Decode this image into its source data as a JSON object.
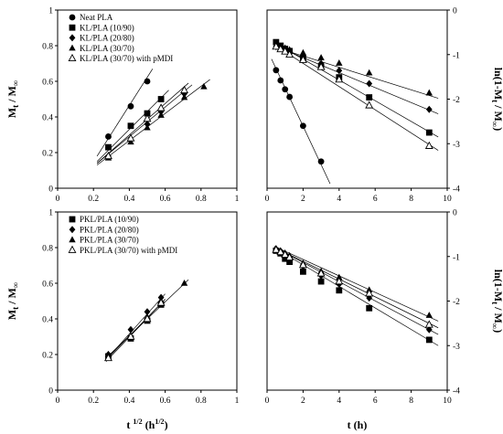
{
  "chart_data": [
    {
      "type": "scatter",
      "id": "tl",
      "xlim": [
        0,
        1
      ],
      "ylim": [
        0,
        1
      ],
      "xticks": [
        0,
        0.2,
        0.4,
        0.6,
        0.8,
        1
      ],
      "yticks": [
        0,
        0.2,
        0.4,
        0.6,
        0.8,
        1
      ],
      "xtick_labels": [
        "0",
        "0.2",
        "0.4",
        "0.6",
        "0.8",
        "1"
      ],
      "ytick_labels": [
        "0",
        "0.2",
        "0.4",
        "0.6",
        "0.8",
        "1"
      ],
      "ylabel": "Mt / M∞",
      "xlabel": "",
      "legend": "top-left",
      "series": [
        {
          "name": "Neat PLA",
          "marker": "circle",
          "x": [
            0.283,
            0.408,
            0.5
          ],
          "y": [
            0.29,
            0.46,
            0.6
          ],
          "fit": [
            [
              0.22,
              0.18
            ],
            [
              0.53,
              0.67
            ]
          ]
        },
        {
          "name": "KL/PLA (10/90)",
          "marker": "square",
          "x": [
            0.283,
            0.408,
            0.5,
            0.577
          ],
          "y": [
            0.23,
            0.35,
            0.42,
            0.5
          ],
          "fit": [
            [
              0.22,
              0.15
            ],
            [
              0.62,
              0.55
            ]
          ]
        },
        {
          "name": "KL/PLA (20/80)",
          "marker": "diamond",
          "x": [
            0.283,
            0.408,
            0.5,
            0.577,
            0.707
          ],
          "y": [
            0.18,
            0.27,
            0.36,
            0.43,
            0.53
          ],
          "fit": [
            [
              0.22,
              0.14
            ],
            [
              0.75,
              0.58
            ]
          ]
        },
        {
          "name": "KL/PLA (30/70)",
          "marker": "triangle",
          "x": [
            0.283,
            0.408,
            0.5,
            0.577,
            0.707,
            0.816
          ],
          "y": [
            0.17,
            0.26,
            0.34,
            0.41,
            0.51,
            0.57
          ],
          "fit": [
            [
              0.22,
              0.13
            ],
            [
              0.85,
              0.61
            ]
          ]
        },
        {
          "name": "KL/PLA (30/70) with pMDI",
          "marker": "triangle-open",
          "x": [
            0.283,
            0.408,
            0.5,
            0.577,
            0.707
          ],
          "y": [
            0.18,
            0.28,
            0.39,
            0.45,
            0.55
          ],
          "fit": [
            [
              0.22,
              0.14
            ],
            [
              0.73,
              0.59
            ]
          ]
        }
      ]
    },
    {
      "type": "scatter",
      "id": "tr",
      "xlim": [
        0,
        10
      ],
      "ylim": [
        -4,
        0
      ],
      "xticks": [
        0,
        2,
        4,
        6,
        8,
        10
      ],
      "yticks": [
        0,
        -1,
        -2,
        -3,
        -4
      ],
      "xtick_labels": [
        "0",
        "2",
        "4",
        "6",
        "8",
        "10"
      ],
      "ytick_labels": [
        "0",
        "-1",
        "-2",
        "-3",
        "-4"
      ],
      "ylabel": "ln(1-Mt / M∞)",
      "xlabel": "",
      "series": [
        {
          "name": "Neat PLA",
          "marker": "circle",
          "x": [
            0.5,
            0.75,
            1,
            1.25,
            2,
            3
          ],
          "y": [
            -1.35,
            -1.58,
            -1.78,
            -1.95,
            -2.6,
            -3.4
          ],
          "fit": [
            [
              0.25,
              -1.1
            ],
            [
              3.5,
              -3.9
            ]
          ]
        },
        {
          "name": "KL/PLA (10/90)",
          "marker": "square",
          "x": [
            0.5,
            0.75,
            1,
            1.25,
            2,
            3,
            4,
            5.67,
            9
          ],
          "y": [
            -0.72,
            -0.8,
            -0.87,
            -0.92,
            -1.08,
            -1.27,
            -1.51,
            -1.96,
            -2.75
          ],
          "fit": [
            [
              0.4,
              -0.73
            ],
            [
              9.5,
              -2.85
            ]
          ]
        },
        {
          "name": "KL/PLA (20/80)",
          "marker": "diamond",
          "x": [
            0.5,
            0.75,
            1,
            1.25,
            2,
            3,
            4,
            5.67,
            9
          ],
          "y": [
            -0.82,
            -0.86,
            -0.9,
            -0.95,
            -1.06,
            -1.2,
            -1.36,
            -1.65,
            -2.23
          ],
          "fit": [
            [
              0.4,
              -0.8
            ],
            [
              9.5,
              -2.33
            ]
          ]
        },
        {
          "name": "KL/PLA (30/70)",
          "marker": "triangle",
          "x": [
            0.5,
            0.75,
            1,
            1.25,
            2,
            3,
            4,
            5.67,
            9
          ],
          "y": [
            -0.82,
            -0.85,
            -0.85,
            -0.89,
            -0.96,
            -1.07,
            -1.19,
            -1.41,
            -1.86
          ],
          "fit": [
            [
              0.4,
              -0.83
            ],
            [
              9.5,
              -1.98
            ]
          ]
        },
        {
          "name": "KL/PLA (30/70) with pMDI",
          "marker": "triangle-open",
          "x": [
            0.5,
            0.75,
            1,
            1.25,
            2,
            3,
            4,
            5.67,
            9
          ],
          "y": [
            -0.82,
            -0.88,
            -0.93,
            -1.0,
            -1.12,
            -1.28,
            -1.56,
            -2.14,
            -3.05
          ],
          "fit": [
            [
              0.4,
              -0.78
            ],
            [
              9.5,
              -3.15
            ]
          ]
        }
      ]
    },
    {
      "type": "scatter",
      "id": "bl",
      "xlim": [
        0,
        1
      ],
      "ylim": [
        0,
        1
      ],
      "xticks": [
        0,
        0.2,
        0.4,
        0.6,
        0.8,
        1
      ],
      "yticks": [
        0,
        0.2,
        0.4,
        0.6,
        0.8,
        1
      ],
      "xtick_labels": [
        "0",
        "0.2",
        "0.4",
        "0.6",
        "0.8",
        "1"
      ],
      "ytick_labels": [
        "0",
        "0.2",
        "0.4",
        "0.6",
        "0.8",
        "1"
      ],
      "ylabel": "Mt / M∞",
      "xlabel": "t 1/2 (h1/2)",
      "legend": "top-left",
      "series": [
        {
          "name": "PKL/PLA (10/90)",
          "marker": "square",
          "x": [
            0.283,
            0.408,
            0.5,
            0.577
          ],
          "y": [
            0.19,
            0.29,
            0.39,
            0.48
          ],
          "fit": [
            [
              0.27,
              0.17
            ],
            [
              0.6,
              0.51
            ]
          ]
        },
        {
          "name": "PKL/PLA (20/80)",
          "marker": "diamond",
          "x": [
            0.283,
            0.408,
            0.5,
            0.577
          ],
          "y": [
            0.2,
            0.34,
            0.44,
            0.52
          ],
          "fit": [
            [
              0.27,
              0.17
            ],
            [
              0.6,
              0.54
            ]
          ]
        },
        {
          "name": "PKL/PLA (30/70)",
          "marker": "triangle",
          "x": [
            0.283,
            0.408,
            0.5,
            0.577,
            0.707
          ],
          "y": [
            0.2,
            0.3,
            0.41,
            0.5,
            0.6
          ],
          "fit": [
            [
              0.27,
              0.18
            ],
            [
              0.73,
              0.62
            ]
          ]
        },
        {
          "name": "PKL/PLA (30/70) with pMDI",
          "marker": "triangle-open",
          "x": [
            0.283,
            0.408,
            0.5,
            0.577
          ],
          "y": [
            0.18,
            0.3,
            0.4,
            0.49
          ],
          "fit": [
            [
              0.27,
              0.16
            ],
            [
              0.6,
              0.51
            ]
          ]
        }
      ]
    },
    {
      "type": "scatter",
      "id": "br",
      "xlim": [
        0,
        10
      ],
      "ylim": [
        -4,
        0
      ],
      "xticks": [
        0,
        2,
        4,
        6,
        8,
        10
      ],
      "yticks": [
        0,
        -1,
        -2,
        -3,
        -4
      ],
      "xtick_labels": [
        "0",
        "2",
        "4",
        "6",
        "8",
        "10"
      ],
      "ytick_labels": [
        "0",
        "-1",
        "-2",
        "-3",
        "-4"
      ],
      "ylabel": "ln(1-Mt / M∞)",
      "xlabel": "t (h)",
      "series": [
        {
          "name": "PKL/PLA (10/90)",
          "marker": "square",
          "x": [
            0.5,
            0.75,
            1,
            1.25,
            2,
            3,
            4,
            5.67,
            9
          ],
          "y": [
            -0.87,
            -0.93,
            -1.05,
            -1.12,
            -1.34,
            -1.56,
            -1.76,
            -2.16,
            -2.87
          ],
          "fit": [
            [
              0.4,
              -0.8
            ],
            [
              9.5,
              -3.0
            ]
          ]
        },
        {
          "name": "PKL/PLA (20/80)",
          "marker": "diamond",
          "x": [
            0.5,
            0.75,
            1,
            1.25,
            2,
            3,
            4,
            5.67,
            9
          ],
          "y": [
            -0.83,
            -0.88,
            -0.95,
            -1.03,
            -1.22,
            -1.43,
            -1.62,
            -1.93,
            -2.64
          ],
          "fit": [
            [
              0.4,
              -0.79
            ],
            [
              9.5,
              -2.75
            ]
          ]
        },
        {
          "name": "PKL/PLA (30/70)",
          "marker": "triangle",
          "x": [
            0.5,
            0.75,
            1,
            1.25,
            2,
            3,
            4,
            5.67,
            9
          ],
          "y": [
            -0.82,
            -0.87,
            -0.92,
            -0.98,
            -1.15,
            -1.33,
            -1.47,
            -1.75,
            -2.32
          ],
          "fit": [
            [
              0.4,
              -0.77
            ],
            [
              9.5,
              -2.45
            ]
          ]
        },
        {
          "name": "PKL/PLA (30/70) with pMDI",
          "marker": "triangle-open",
          "x": [
            0.5,
            0.75,
            1,
            1.25,
            2,
            3,
            4,
            5.67,
            9
          ],
          "y": [
            -0.85,
            -0.9,
            -0.96,
            -1.02,
            -1.19,
            -1.38,
            -1.56,
            -1.83,
            -2.53
          ],
          "fit": [
            [
              0.4,
              -0.79
            ],
            [
              9.5,
              -2.6
            ]
          ]
        }
      ]
    }
  ]
}
